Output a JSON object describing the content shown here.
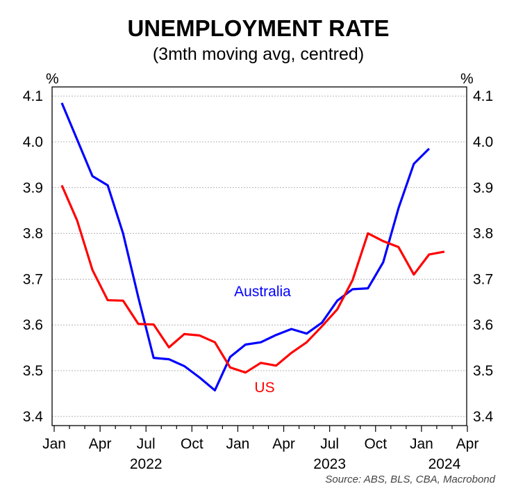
{
  "chart_data": {
    "type": "line",
    "title": "UNEMPLOYMENT RATE",
    "subtitle": "(3mth moving avg, centred)",
    "y_unit_left": "%",
    "y_unit_right": "%",
    "source": "Source: ABS, BLS, CBA, Macrobond",
    "ylim": [
      3.38,
      4.12
    ],
    "yticks": [
      "3.4",
      "3.5",
      "3.6",
      "3.7",
      "3.8",
      "3.9",
      "4.0",
      "4.1"
    ],
    "xlim": [
      0,
      27
    ],
    "x_tick_labels": [
      {
        "month": 0,
        "label": "Jan"
      },
      {
        "month": 3,
        "label": "Apr"
      },
      {
        "month": 6,
        "label": "Jul"
      },
      {
        "month": 9,
        "label": "Oct"
      },
      {
        "month": 12,
        "label": "Jan"
      },
      {
        "month": 15,
        "label": "Apr"
      },
      {
        "month": 18,
        "label": "Jul"
      },
      {
        "month": 21,
        "label": "Oct"
      },
      {
        "month": 24,
        "label": "Jan"
      },
      {
        "month": 27,
        "label": "Apr"
      }
    ],
    "x_year_labels": [
      {
        "month": 6,
        "label": "2022"
      },
      {
        "month": 18,
        "label": "2023"
      },
      {
        "month": 25.5,
        "label": "2024"
      }
    ],
    "grid": true,
    "series": [
      {
        "name": "Australia",
        "color": "#0000ff",
        "x": [
          0.5,
          1.5,
          2.5,
          3.5,
          4.5,
          5.5,
          6.5,
          7.5,
          8.5,
          9.5,
          10.5,
          11.5,
          12.5,
          13.5,
          14.5,
          15.5,
          16.5,
          17.5,
          18.5,
          19.5,
          20.5,
          21.5,
          22.5,
          23.5,
          24.5
        ],
        "values": [
          4.085,
          4.005,
          3.925,
          3.905,
          3.8,
          3.66,
          3.528,
          3.525,
          3.51,
          3.485,
          3.457,
          3.53,
          3.557,
          3.562,
          3.578,
          3.591,
          3.581,
          3.605,
          3.653,
          3.678,
          3.68,
          3.737,
          3.855,
          3.952,
          3.985
        ]
      },
      {
        "name": "US",
        "color": "#ff0000",
        "x": [
          0.5,
          1.5,
          2.5,
          3.5,
          4.5,
          5.5,
          6.5,
          7.5,
          8.5,
          9.5,
          10.5,
          11.5,
          12.5,
          13.5,
          14.5,
          15.5,
          16.5,
          17.5,
          18.5,
          19.5,
          20.5,
          21.5,
          22.5,
          23.5,
          24.5,
          25.5
        ],
        "values": [
          3.905,
          3.828,
          3.72,
          3.654,
          3.653,
          3.602,
          3.601,
          3.551,
          3.58,
          3.577,
          3.562,
          3.507,
          3.496,
          3.517,
          3.511,
          3.539,
          3.562,
          3.597,
          3.634,
          3.698,
          3.8,
          3.783,
          3.77,
          3.71,
          3.754,
          3.76
        ]
      }
    ]
  }
}
